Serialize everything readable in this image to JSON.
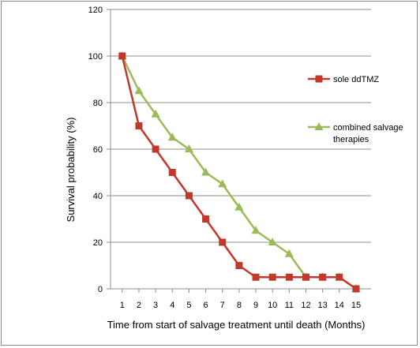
{
  "chart_data": {
    "type": "line",
    "xlabel": "Time from start of salvage treatment until death (Months)",
    "ylabel": "Survival probability (%)",
    "x": [
      1,
      2,
      3,
      4,
      5,
      6,
      7,
      8,
      9,
      10,
      11,
      12,
      13,
      14,
      15
    ],
    "ylim": [
      0,
      120
    ],
    "yticks": [
      0,
      20,
      40,
      60,
      80,
      100,
      120
    ],
    "grid": "horizontal",
    "legend_position": "right",
    "series": [
      {
        "name": "sole ddTMZ",
        "color": "#c0392b",
        "marker": "square",
        "values": [
          100,
          70,
          60,
          50,
          40,
          30,
          20,
          10,
          5,
          5,
          5,
          5,
          5,
          5,
          0
        ]
      },
      {
        "name": "combined salvage therapies",
        "legend_lines": [
          "combined salvage",
          "therapies"
        ],
        "color": "#9bbb59",
        "marker": "triangle",
        "values": [
          100,
          85,
          75,
          65,
          60,
          50,
          45,
          35,
          25,
          20,
          15,
          5,
          5,
          5,
          0
        ]
      }
    ]
  }
}
